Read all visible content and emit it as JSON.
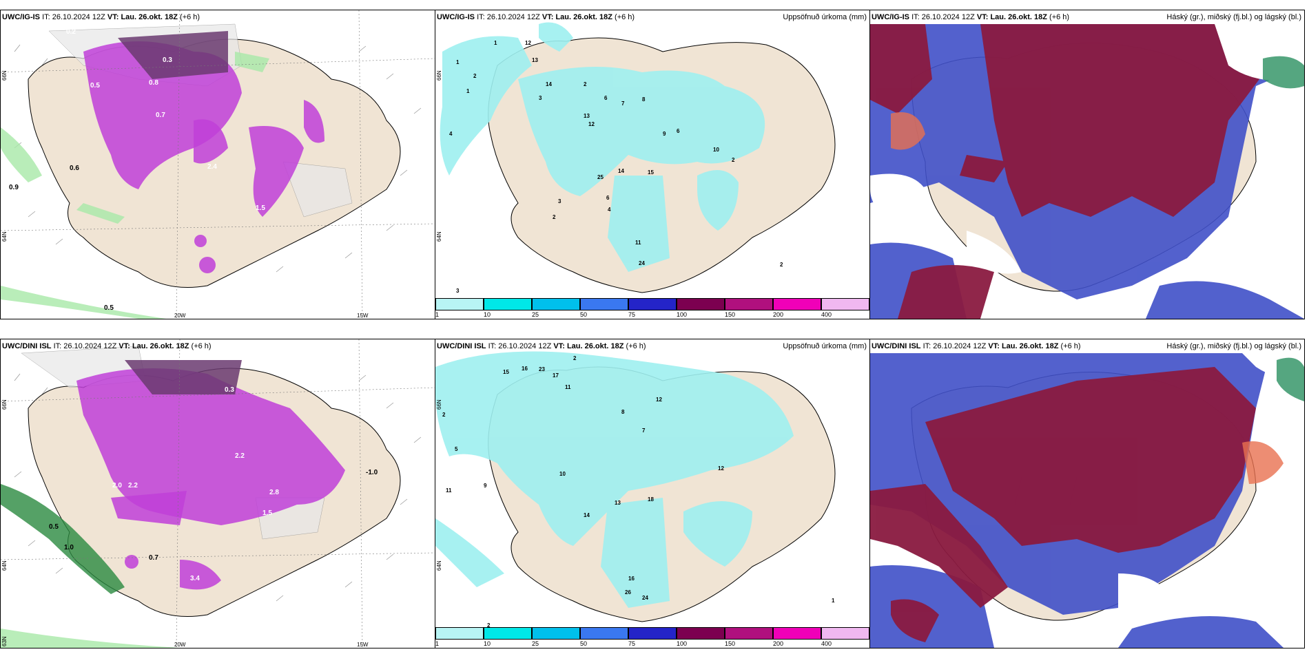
{
  "panels": [
    {
      "model": "UWC/IG-IS",
      "it_label": "IT:",
      "it_time": "26.10.2024 12Z",
      "vt_label": "VT:",
      "vt_time": "Lau. 26.okt. 18Z",
      "lead": "(+6 h)",
      "right_title": ""
    },
    {
      "model": "UWC/IG-IS",
      "it_label": "IT:",
      "it_time": "26.10.2024 12Z",
      "vt_label": "VT:",
      "vt_time": "Lau. 26.okt. 18Z",
      "lead": "(+6 h)",
      "right_title": "Uppsöfnuð úrkoma (mm)"
    },
    {
      "model": "UWC/IG-IS",
      "it_label": "IT:",
      "it_time": "26.10.2024 12Z",
      "vt_label": "VT:",
      "vt_time": "Lau. 26.okt. 18Z",
      "lead": "(+6 h)",
      "right_title": "Háský (gr.), miðský (fj.bl.) og lágský (bl.)"
    },
    {
      "model": "UWC/DINI ISL",
      "it_label": "IT:",
      "it_time": "26.10.2024 12Z",
      "vt_label": "VT:",
      "vt_time": "Lau. 26.okt. 18Z",
      "lead": "(+6 h)",
      "right_title": ""
    },
    {
      "model": "UWC/DINI ISL",
      "it_label": "IT:",
      "it_time": "26.10.2024 12Z",
      "vt_label": "VT:",
      "vt_time": "Lau. 26.okt. 18Z",
      "lead": "(+6 h)",
      "right_title": "Uppsöfnuð úrkoma (mm)"
    },
    {
      "model": "UWC/DINI ISL",
      "it_label": "IT:",
      "it_time": "26.10.2024 12Z",
      "vt_label": "VT:",
      "vt_time": "Lau. 26.okt. 18Z",
      "lead": "(+6 h)",
      "right_title": "Háský (gr.), miðský (fj.bl.) og lágský (bl.)"
    }
  ],
  "axis_labels": {
    "lon_20w": "20W",
    "lon_15w": "15W",
    "lat_66n": "66N",
    "lat_64n": "64N",
    "lat_63n": "63N"
  },
  "colorbar": {
    "ticks": [
      "1",
      "10",
      "25",
      "50",
      "75",
      "100",
      "150",
      "200",
      "400"
    ],
    "colors": [
      "#b8f4f4",
      "#00e8e8",
      "#00c0ec",
      "#3a78f0",
      "#2424c8",
      "#7c0050",
      "#b0107e",
      "#f000b8",
      "#f0b8f0"
    ]
  },
  "precip_labels_top": [
    "1",
    "2",
    "1",
    "4",
    "1",
    "3",
    "12",
    "13",
    "14",
    "2",
    "12",
    "6",
    "7",
    "8",
    "9",
    "6",
    "10",
    "2",
    "15",
    "14",
    "25",
    "13",
    "6",
    "4",
    "3",
    "2",
    "11",
    "24",
    "2",
    "3"
  ],
  "precip_labels_bottom": [
    "2",
    "15",
    "16",
    "23",
    "17",
    "11",
    "5",
    "2",
    "11",
    "9",
    "10",
    "8",
    "7",
    "12",
    "13",
    "18",
    "14",
    "12",
    "24",
    "26",
    "16",
    "2",
    "1"
  ],
  "cloud_labels_top": [
    "0.2",
    "0.3",
    "0.5",
    "0.8",
    "2.4",
    "1.5",
    "0.9",
    "0.6",
    "0.7",
    "0.5"
  ],
  "cloud_labels_bottom": [
    "0.3",
    "2.0",
    "2.2",
    "1.0",
    "0.5",
    "0.7",
    "3.4",
    "2.8",
    "1.5",
    "-1.0",
    "2.2"
  ],
  "colors": {
    "land": "#f0e4d4",
    "precip_light": "#9ef0f0",
    "cloud_purple": "#c040d8",
    "cloud_dark": "#6a3a70",
    "high_cloud": "#8a1a40",
    "mid_cloud": "#4050c8",
    "light_green": "#a8e8a8"
  }
}
